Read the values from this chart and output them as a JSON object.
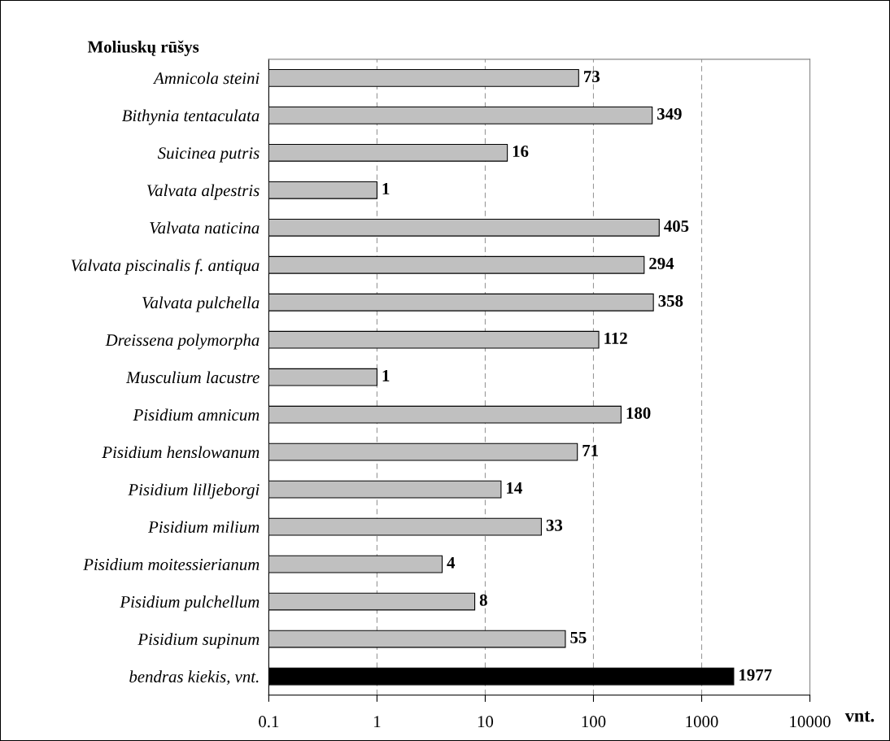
{
  "chart_data": {
    "type": "bar",
    "orientation": "horizontal",
    "log": "x",
    "ylabel": "Moliuskų rūšys",
    "xlabel": "vnt.",
    "categories": [
      "Amnicola steini",
      "Bithynia tentaculata",
      "Suicinea putris",
      "Valvata alpestris",
      "Valvata naticina",
      "Valvata piscinalis f. antiqua",
      "Valvata pulchella",
      "Dreissena polymorpha",
      "Musculium lacustre",
      "Pisidium amnicum",
      "Pisidium henslowanum",
      "Pisidium lilljeborgi",
      "Pisidium milium",
      "Pisidium moitessierianum",
      "Pisidium pulchellum",
      "Pisidium supinum",
      "bendras kiekis, vnt."
    ],
    "values": [
      73,
      349,
      16,
      1,
      405,
      294,
      358,
      112,
      1,
      180,
      71,
      14,
      33,
      4,
      8,
      55,
      1977
    ],
    "colors": [
      "#c0c0c0",
      "#c0c0c0",
      "#c0c0c0",
      "#c0c0c0",
      "#c0c0c0",
      "#c0c0c0",
      "#c0c0c0",
      "#c0c0c0",
      "#c0c0c0",
      "#c0c0c0",
      "#c0c0c0",
      "#c0c0c0",
      "#c0c0c0",
      "#c0c0c0",
      "#c0c0c0",
      "#c0c0c0",
      "#000000"
    ],
    "xlim": [
      0.1,
      10000
    ],
    "xticks": [
      0.1,
      1,
      10,
      100,
      1000,
      10000
    ],
    "grid": "x",
    "data_labels": true
  }
}
